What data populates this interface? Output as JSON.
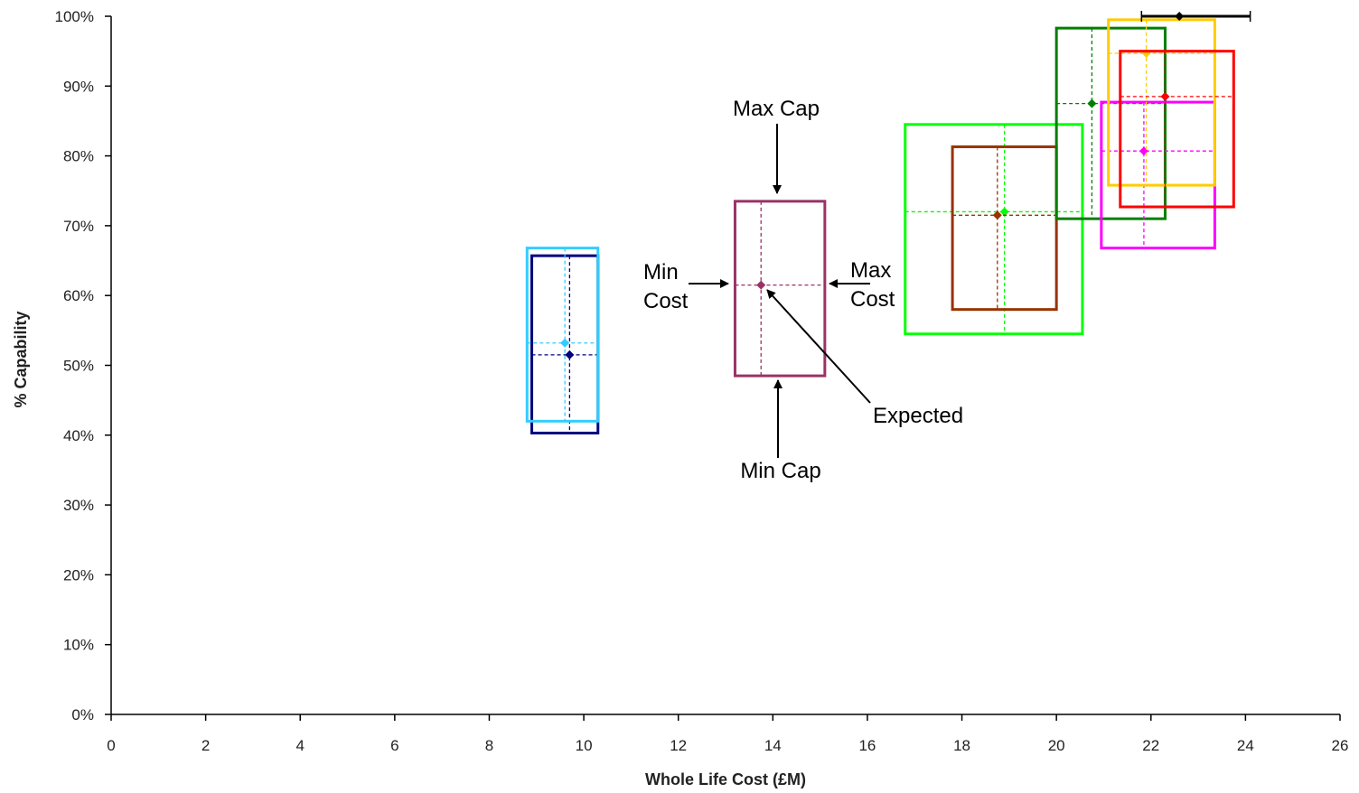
{
  "chart_data": {
    "type": "scatter",
    "title": "",
    "xlabel": "Whole Life Cost (£M)",
    "ylabel": "% Capability",
    "xlim": [
      0,
      26
    ],
    "ylim": [
      0,
      100
    ],
    "x_ticks": [
      "0",
      "2",
      "4",
      "6",
      "8",
      "10",
      "12",
      "14",
      "16",
      "18",
      "20",
      "22",
      "24",
      "26"
    ],
    "y_ticks": [
      "0%",
      "10%",
      "20%",
      "30%",
      "40%",
      "50%",
      "60%",
      "70%",
      "80%",
      "90%",
      "100%"
    ],
    "grid": false,
    "legend": "none",
    "series": [
      {
        "color": "#000080",
        "expected": [
          9.7,
          51.5
        ],
        "min_cost": 8.9,
        "max_cost": 10.3,
        "min_cap": 40.3,
        "max_cap": 65.7
      },
      {
        "color": "#33ccff",
        "expected": [
          9.6,
          53.2
        ],
        "min_cost": 8.8,
        "max_cost": 10.3,
        "min_cap": 42.0,
        "max_cap": 66.8
      },
      {
        "color": "#993366",
        "expected": [
          13.75,
          61.5
        ],
        "min_cost": 13.2,
        "max_cost": 15.1,
        "min_cap": 48.5,
        "max_cap": 73.5
      },
      {
        "color": "#00ff00",
        "expected": [
          18.9,
          72.0
        ],
        "min_cost": 16.8,
        "max_cost": 20.55,
        "min_cap": 54.5,
        "max_cap": 84.5
      },
      {
        "color": "#993300",
        "expected": [
          18.75,
          71.5
        ],
        "min_cost": 17.8,
        "max_cost": 20.0,
        "min_cap": 58.0,
        "max_cap": 81.3
      },
      {
        "color": "#008000",
        "expected": [
          20.75,
          87.5
        ],
        "min_cost": 20.0,
        "max_cost": 22.3,
        "min_cap": 71.0,
        "max_cap": 98.3
      },
      {
        "color": "#ff00ff",
        "expected": [
          21.85,
          80.7
        ],
        "min_cost": 20.95,
        "max_cost": 23.35,
        "min_cap": 66.8,
        "max_cap": 87.7
      },
      {
        "color": "#ffcc00",
        "expected": [
          21.9,
          94.7
        ],
        "min_cost": 21.1,
        "max_cost": 23.35,
        "min_cap": 75.8,
        "max_cap": 99.5
      },
      {
        "color": "#ff0000",
        "expected": [
          22.3,
          88.5
        ],
        "min_cost": 21.35,
        "max_cost": 23.75,
        "min_cap": 72.7,
        "max_cap": 95.0
      },
      {
        "color": "#000000",
        "expected": [
          22.6,
          100.0
        ],
        "min_cost": 21.8,
        "max_cost": 24.1,
        "min_cap": 100.0,
        "max_cap": 100.0
      }
    ],
    "annotations": [
      {
        "id": "max-cap",
        "lines": [
          "Max Cap"
        ]
      },
      {
        "id": "min-cap",
        "lines": [
          "Min Cap"
        ]
      },
      {
        "id": "min-cost",
        "lines": [
          "Min",
          "Cost"
        ]
      },
      {
        "id": "max-cost",
        "lines": [
          "Max",
          "Cost"
        ]
      },
      {
        "id": "expected",
        "lines": [
          "Expected"
        ]
      }
    ]
  }
}
